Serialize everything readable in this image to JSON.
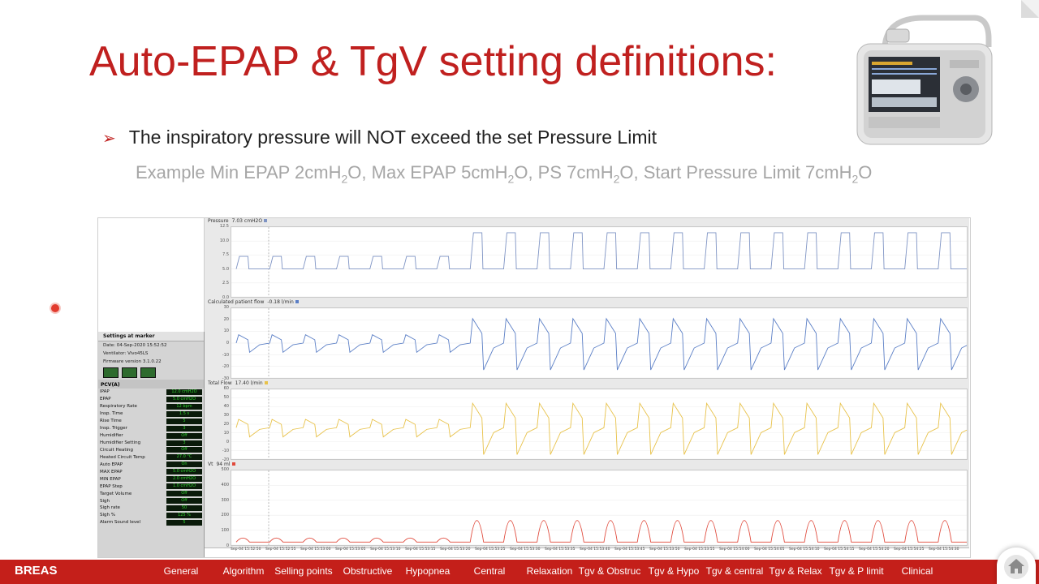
{
  "slide": {
    "title": "Auto-EPAP & TgV setting definitions:",
    "bullet": "The inspiratory pressure will NOT exceed the set Pressure Limit",
    "example": {
      "p1": "Example Min EPAP 2cmH",
      "p2": "O, Max EPAP 5cmH",
      "p3": "O, PS 7cmH",
      "p4": "O, Start Pressure Limit 7cmH",
      "p5": "O",
      "sub": "2"
    }
  },
  "settings_panel": {
    "header": "Settings at marker",
    "date": "Date: 04-Sep-2020 15:52:52",
    "ventilator": "Ventilator: Vivo45LS",
    "firmware": "Firmware version 3.1.0.22",
    "mode": "PCV(A)",
    "rows": [
      {
        "label": "IPAP",
        "value": "12.0 cmH2O"
      },
      {
        "label": "EPAP",
        "value": "5.0 cmH2O"
      },
      {
        "label": "Respiratory Rate",
        "value": "12 bpm"
      },
      {
        "label": "Insp. Time",
        "value": "1.5 s"
      },
      {
        "label": "Rise Time",
        "value": "5"
      },
      {
        "label": "Insp. Trigger",
        "value": "3"
      },
      {
        "label": "Humidifier",
        "value": "Off"
      },
      {
        "label": "Humidifier Setting",
        "value": "3"
      },
      {
        "label": "Circuit Heating",
        "value": "Off"
      },
      {
        "label": "Heated Circuit Temp",
        "value": "27.0 °C"
      },
      {
        "label": "Auto EPAP",
        "value": "On"
      },
      {
        "label": "MAX EPAP",
        "value": "5.0 cmH2O"
      },
      {
        "label": "MIN EPAP",
        "value": "2.0 cmH2O"
      },
      {
        "label": "EPAP Step",
        "value": "1.0 cmH2O"
      },
      {
        "label": "Target Volume",
        "value": "Off"
      },
      {
        "label": "Sigh",
        "value": "Off"
      },
      {
        "label": "Sigh rate",
        "value": "50"
      },
      {
        "label": "Sigh %",
        "value": "125 %"
      },
      {
        "label": "Alarm Sound level",
        "value": "5"
      }
    ]
  },
  "chart_data": [
    {
      "type": "line",
      "title": "Pressure",
      "readout": "7.03 cmH2O",
      "yticks": [
        "12.5",
        "10.0",
        "7.5",
        "5.0",
        "2.5",
        "0.0"
      ],
      "ylim": [
        0,
        12.5
      ],
      "color": "#7f94c4",
      "series": [
        {
          "values": []
        }
      ]
    },
    {
      "type": "line",
      "title": "Calculated patient flow",
      "readout": "-0.18 l/min",
      "yticks": [
        "30",
        "20",
        "10",
        "0",
        "-10",
        "-20",
        "-30"
      ],
      "ylim": [
        -30,
        30
      ],
      "color": "#5b7fc6",
      "series": [
        {
          "values": []
        }
      ]
    },
    {
      "type": "line",
      "title": "Total Flow",
      "readout": "17.40 l/min",
      "yticks": [
        "60",
        "50",
        "40",
        "30",
        "20",
        "10",
        "0",
        "-10",
        "-20"
      ],
      "ylim": [
        -20,
        60
      ],
      "color": "#e8c24a",
      "series": [
        {
          "values": []
        }
      ]
    },
    {
      "type": "line",
      "title": "Vt",
      "readout": "94 ml",
      "yticks": [
        "500",
        "400",
        "300",
        "200",
        "100",
        "0"
      ],
      "ylim": [
        0,
        500
      ],
      "color": "#e04a3c",
      "series": [
        {
          "values": []
        }
      ]
    }
  ],
  "time_axis": [
    "Sep-04 15:52:50",
    "Sep-04 15:52:55",
    "Sep-04 15:53:00",
    "Sep-04 15:53:05",
    "Sep-04 15:53:10",
    "Sep-04 15:53:15",
    "Sep-04 15:53:20",
    "Sep-04 15:53:25",
    "Sep-04 15:53:30",
    "Sep-04 15:53:35",
    "Sep-04 15:53:40",
    "Sep-04 15:53:45",
    "Sep-04 15:53:50",
    "Sep-04 15:53:55",
    "Sep-04 15:54:00",
    "Sep-04 15:54:05",
    "Sep-04 15:54:10",
    "Sep-04 15:54:15",
    "Sep-04 15:54:20",
    "Sep-04 15:54:25",
    "Sep-04 15:54:30"
  ],
  "navbar": {
    "brand": "BREAS",
    "items": [
      "General",
      "Algorithm",
      "Selling points",
      "Obstructive",
      "Hypopnea",
      "Central",
      "Relaxation",
      "Tgv & Obstruc",
      "Tgv & Hypo",
      "Tgv & central",
      "Tgv & Relax",
      "Tgv & P limit",
      "Clinical"
    ]
  },
  "colors": {
    "accent": "#c0201f",
    "navbar": "#c41f1a"
  }
}
